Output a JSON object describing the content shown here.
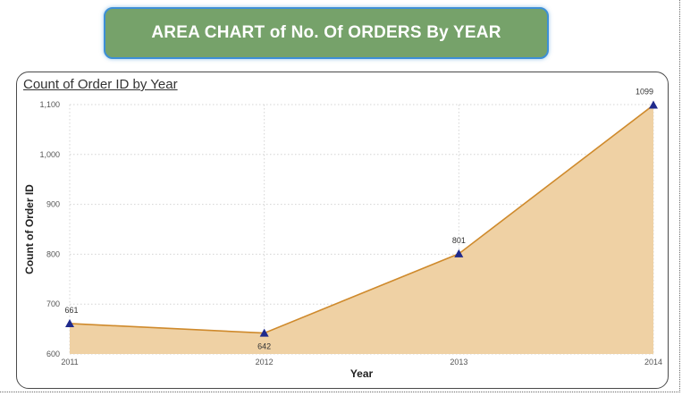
{
  "banner": {
    "title": "AREA CHART of No. Of ORDERS By YEAR"
  },
  "card": {
    "title": "Count of Order ID by Year"
  },
  "chart_data": {
    "type": "area",
    "title": "Count of Order ID by Year",
    "xlabel": "Year",
    "ylabel": "Count of Order ID",
    "categories": [
      "2011",
      "2012",
      "2013",
      "2014"
    ],
    "series": [
      {
        "values": [
          661,
          642,
          801,
          1099
        ],
        "data_labels": [
          "661",
          "642",
          "801",
          "1099"
        ]
      }
    ],
    "ylim": [
      600,
      1100
    ],
    "yticks": [
      600,
      700,
      800,
      900,
      1000,
      1100
    ],
    "ytick_labels": [
      "600",
      "700",
      "800",
      "900",
      "1,000",
      "1,100"
    ],
    "grid": true,
    "colors": {
      "area_fill": "#efd1a4",
      "line": "#cf8a2c",
      "marker": "#1f2a8c"
    }
  }
}
